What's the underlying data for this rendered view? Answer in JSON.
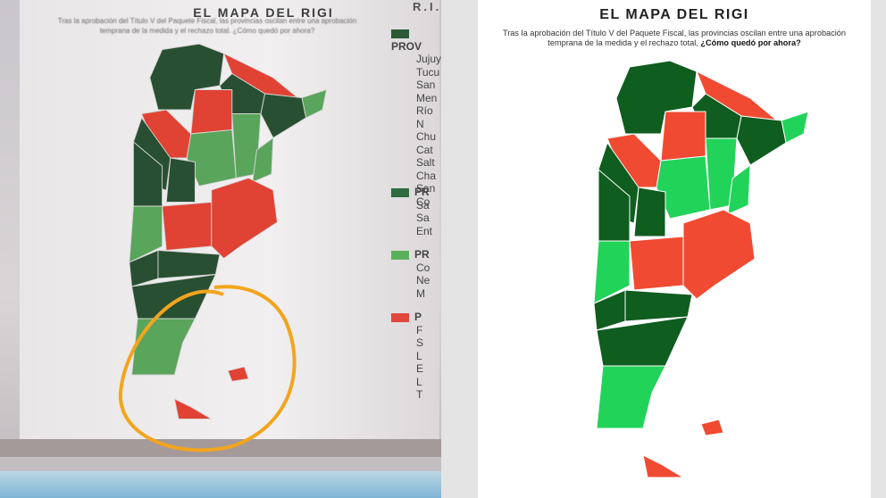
{
  "left": {
    "title": "EL MAPA DEL RIGI",
    "subtitle": "Tras la aprobación del Título V del Paquete Fiscal, las provincias oscilan entre una aprobación temprana de la medida y el rechazo total. ¿Cómo quedó por ahora?",
    "legend_heading": "R.I.G.",
    "legend": [
      {
        "label": "PROV",
        "items": [
          "Jujuy",
          "Tucu",
          "San",
          "Men",
          "Río N",
          "Chu",
          "Cat",
          "Salt",
          "Cha",
          "San",
          "Co"
        ]
      },
      {
        "label": "PR",
        "items": [
          "Sa",
          "Sa",
          "Ent"
        ]
      },
      {
        "label": "PR",
        "items": [
          "Co",
          "Ne",
          "M"
        ]
      },
      {
        "label": "P",
        "items": [
          "F",
          "S",
          "L",
          "E",
          "L",
          "T"
        ]
      }
    ]
  },
  "right": {
    "title": "EL MAPA DEL RIGI",
    "subtitle": "Tras la aprobación del Título V del Paquete Fiscal, las provincias oscilan entre una aprobación temprana de la medida y el rechazo total,",
    "subtitle_bold": "¿Cómo quedó por ahora?"
  }
}
